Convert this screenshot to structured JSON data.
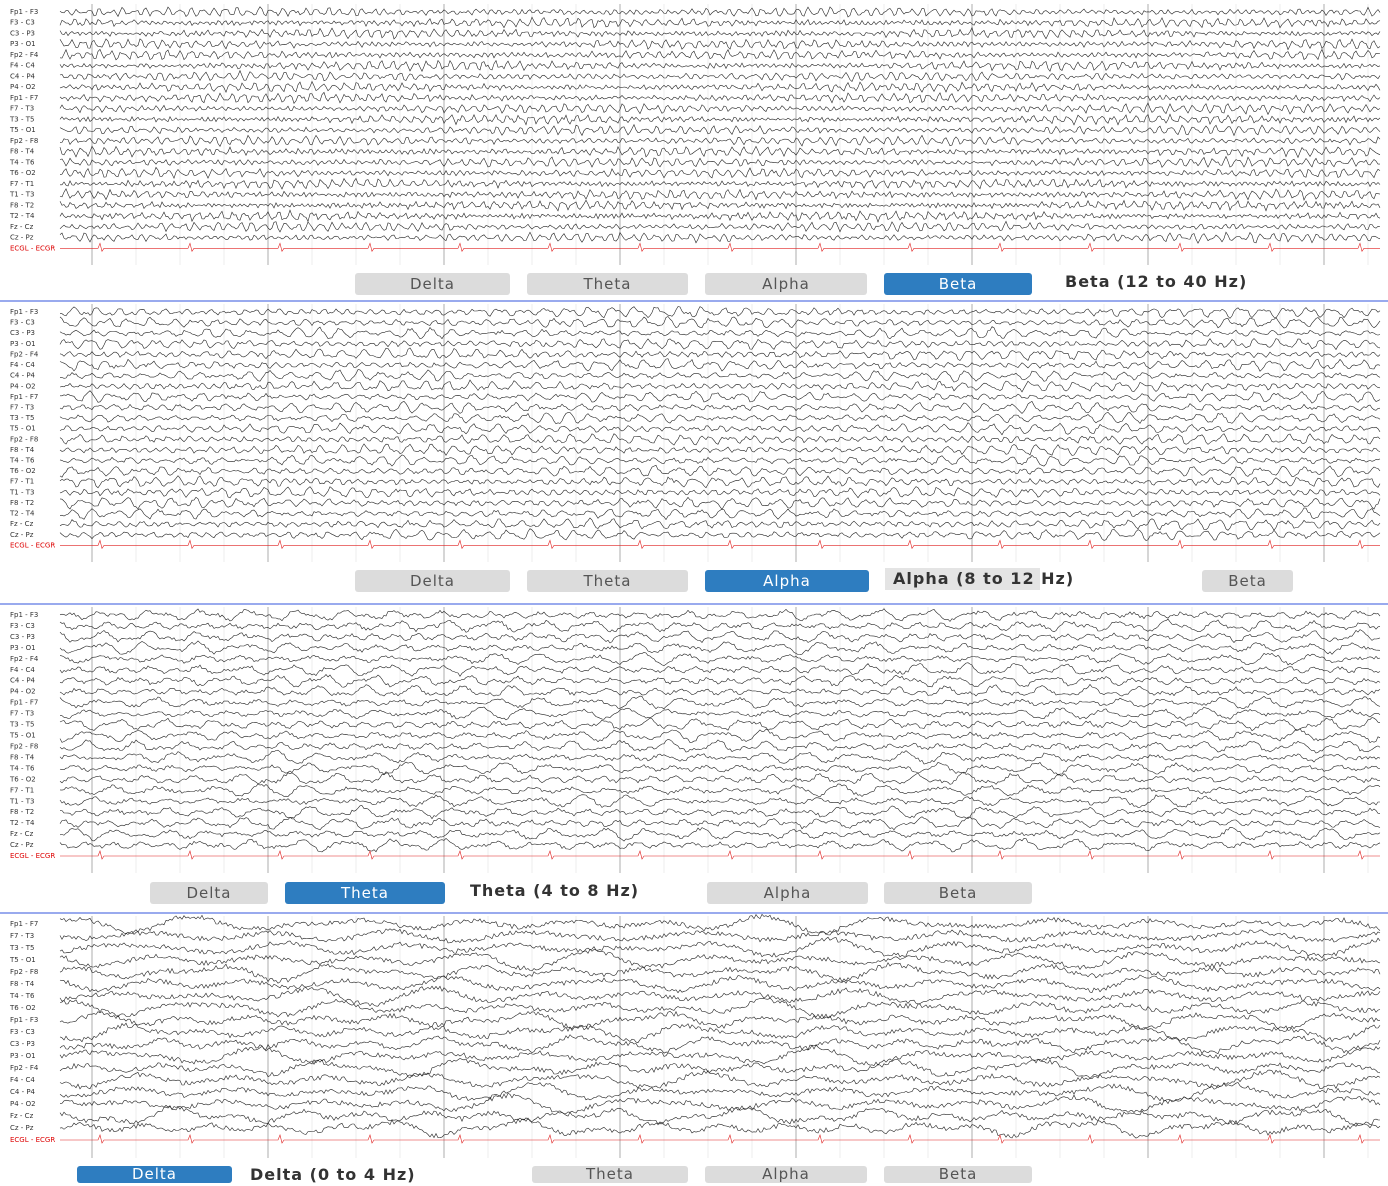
{
  "panels": [
    {
      "band_label": "Beta (12 to 40 Hz)",
      "buttons": [
        "Delta",
        "Theta",
        "Alpha",
        "Beta"
      ],
      "active_index": 3,
      "channels": [
        "Fp1 - F3",
        "F3 - C3",
        "C3 - P3",
        "P3 - O1",
        "Fp2 - F4",
        "F4 - C4",
        "C4 - P4",
        "P4 - O2",
        "Fp1 - F7",
        "F7 - T3",
        "T3 - T5",
        "T5 - O1",
        "Fp2 - F8",
        "F8 - T4",
        "T4 - T6",
        "T6 - O2",
        "F7 - T1",
        "T1 - T3",
        "F8 - T2",
        "T2 - T4",
        "Fz - Cz",
        "Cz - Pz",
        "ECGL - ECGR"
      ]
    },
    {
      "band_label": "Alpha (8 to 12 Hz)",
      "buttons": [
        "Delta",
        "Theta",
        "Alpha",
        "Beta"
      ],
      "active_index": 2,
      "channels": [
        "Fp1 - F3",
        "F3 - C3",
        "C3 - P3",
        "P3 - O1",
        "Fp2 - F4",
        "F4 - C4",
        "C4 - P4",
        "P4 - O2",
        "Fp1 - F7",
        "F7 - T3",
        "T3 - T5",
        "T5 - O1",
        "Fp2 - F8",
        "F8 - T4",
        "T4 - T6",
        "T6 - O2",
        "F7 - T1",
        "T1 - T3",
        "F8 - T2",
        "T2 - T4",
        "Fz - Cz",
        "Cz - Pz",
        "ECGL - ECGR"
      ]
    },
    {
      "band_label": "Theta (4 to 8 Hz)",
      "buttons": [
        "Delta",
        "Theta",
        "Alpha",
        "Beta"
      ],
      "active_index": 1,
      "channels": [
        "Fp1 - F3",
        "F3 - C3",
        "C3 - P3",
        "P3 - O1",
        "Fp2 - F4",
        "F4 - C4",
        "C4 - P4",
        "P4 - O2",
        "Fp1 - F7",
        "F7 - T3",
        "T3 - T5",
        "T5 - O1",
        "Fp2 - F8",
        "F8 - T4",
        "T4 - T6",
        "T6 - O2",
        "F7 - T1",
        "T1 - T3",
        "F8 - T2",
        "T2 - T4",
        "Fz - Cz",
        "Cz - Pz",
        "ECGL - ECGR"
      ]
    },
    {
      "band_label": "Delta (0 to 4 Hz)",
      "buttons": [
        "Delta",
        "Theta",
        "Alpha",
        "Beta"
      ],
      "active_index": 0,
      "channels": [
        "Fp1 - F7",
        "F7 - T3",
        "T3 - T5",
        "T5 - O1",
        "Fp2 - F8",
        "F8 - T4",
        "T4 - T6",
        "T6 - O2",
        "Fp1 - F3",
        "F3 - C3",
        "C3 - P3",
        "P3 - O1",
        "Fp2 - F4",
        "F4 - C4",
        "C4 - P4",
        "P4 - O2",
        "Fz - Cz",
        "Cz - Pz",
        "ECGL - ECGR"
      ]
    }
  ]
}
